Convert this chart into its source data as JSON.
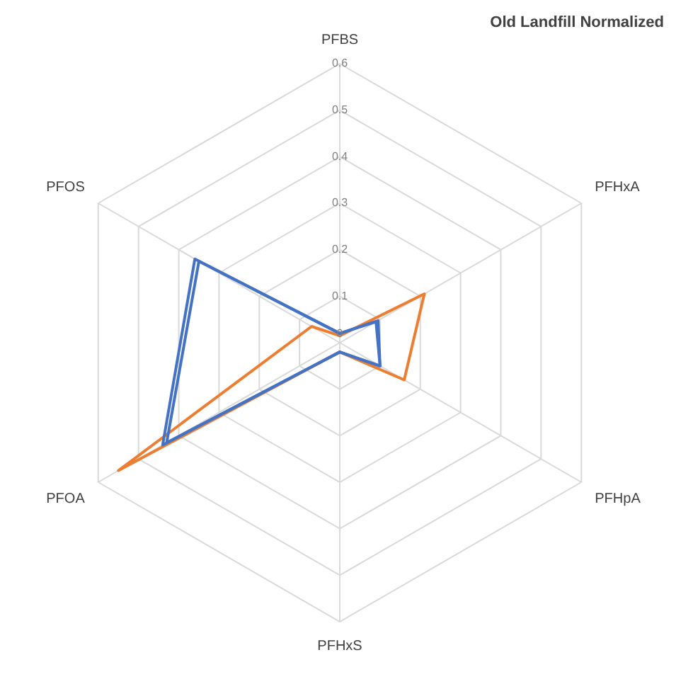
{
  "chart_data": {
    "type": "radar",
    "title": "Old Landfill Normalized",
    "categories": [
      "PFBS",
      "PFHxA",
      "PFHpA",
      "PFHxS",
      "PFOA",
      "PFOS"
    ],
    "series": [
      {
        "color": "#4472c4",
        "values": [
          0.02,
          0.09,
          0.1,
          0.02,
          0.44,
          0.36
        ]
      },
      {
        "color": "#4472c4",
        "values": [
          0.02,
          0.095,
          0.1,
          0.02,
          0.43,
          0.35
        ]
      },
      {
        "color": "#ed7d31",
        "values": [
          0.015,
          0.21,
          0.16,
          0.02,
          0.55,
          0.07
        ]
      }
    ],
    "ylim": [
      0,
      0.6
    ],
    "yticks": [
      0,
      0.1,
      0.2,
      0.3,
      0.4,
      0.5,
      0.6
    ],
    "grid": true,
    "marker": "none",
    "line_style": "solid"
  }
}
